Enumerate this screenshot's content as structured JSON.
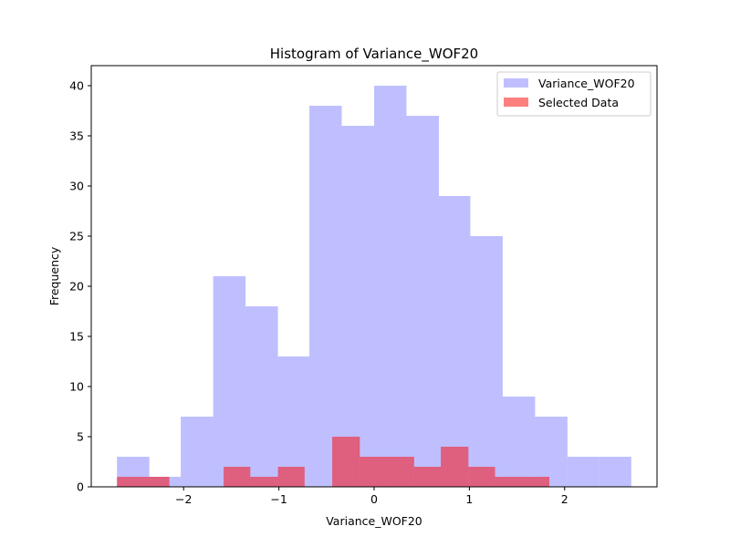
{
  "chart_data": {
    "type": "bar",
    "title": "Histogram of Variance_WOF20",
    "xlabel": "Variance_WOF20",
    "ylabel": "Frequency",
    "xlim": [
      -2.97,
      2.97
    ],
    "ylim": [
      0,
      42
    ],
    "x_ticks": [
      -2,
      -1,
      0,
      1,
      2
    ],
    "x_tick_labels": [
      "−2",
      "−1",
      "0",
      "1",
      "2"
    ],
    "y_ticks": [
      0,
      5,
      10,
      15,
      20,
      25,
      30,
      35,
      40
    ],
    "y_tick_labels": [
      "0",
      "5",
      "10",
      "15",
      "20",
      "25",
      "30",
      "35",
      "40"
    ],
    "grid": false,
    "legend_position": "top-right",
    "series": [
      {
        "name": "Variance_WOF20",
        "color": "#8080ff",
        "bins": [
          {
            "x0": -2.7,
            "x1": -2.36,
            "value": 3
          },
          {
            "x0": -2.36,
            "x1": -2.03,
            "value": 1
          },
          {
            "x0": -2.03,
            "x1": -1.69,
            "value": 7
          },
          {
            "x0": -1.69,
            "x1": -1.35,
            "value": 21
          },
          {
            "x0": -1.35,
            "x1": -1.01,
            "value": 18
          },
          {
            "x0": -1.01,
            "x1": -0.68,
            "value": 13
          },
          {
            "x0": -0.68,
            "x1": -0.34,
            "value": 38
          },
          {
            "x0": -0.34,
            "x1": 0.0,
            "value": 36
          },
          {
            "x0": 0.0,
            "x1": 0.34,
            "value": 40
          },
          {
            "x0": 0.34,
            "x1": 0.68,
            "value": 37
          },
          {
            "x0": 0.68,
            "x1": 1.01,
            "value": 29
          },
          {
            "x0": 1.01,
            "x1": 1.35,
            "value": 25
          },
          {
            "x0": 1.35,
            "x1": 1.69,
            "value": 9
          },
          {
            "x0": 1.69,
            "x1": 2.03,
            "value": 7
          },
          {
            "x0": 2.03,
            "x1": 2.36,
            "value": 3
          },
          {
            "x0": 2.36,
            "x1": 2.7,
            "value": 3
          }
        ]
      },
      {
        "name": "Selected Data",
        "color": "#ff0000",
        "bins": [
          {
            "x0": -2.7,
            "x1": -2.15,
            "value": 1
          },
          {
            "x0": -2.15,
            "x1": -1.58,
            "value": 0
          },
          {
            "x0": -1.58,
            "x1": -1.3,
            "value": 2
          },
          {
            "x0": -1.3,
            "x1": -1.01,
            "value": 1
          },
          {
            "x0": -1.01,
            "x1": -0.73,
            "value": 2
          },
          {
            "x0": -0.73,
            "x1": -0.44,
            "value": 0
          },
          {
            "x0": -0.44,
            "x1": -0.15,
            "value": 5
          },
          {
            "x0": -0.15,
            "x1": 0.13,
            "value": 3
          },
          {
            "x0": 0.13,
            "x1": 0.42,
            "value": 3
          },
          {
            "x0": 0.42,
            "x1": 0.7,
            "value": 2
          },
          {
            "x0": 0.7,
            "x1": 0.99,
            "value": 4
          },
          {
            "x0": 0.99,
            "x1": 1.27,
            "value": 2
          },
          {
            "x0": 1.27,
            "x1": 1.84,
            "value": 1
          }
        ]
      }
    ]
  }
}
